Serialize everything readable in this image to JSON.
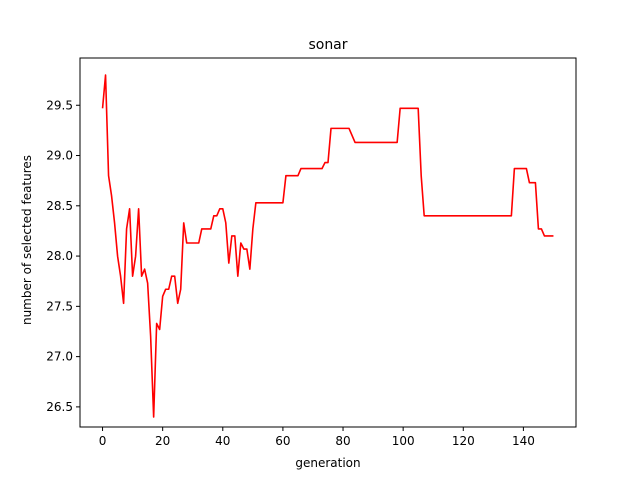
{
  "chart_data": {
    "type": "line",
    "title": "sonar",
    "xlabel": "generation",
    "ylabel": "number of selected features",
    "xlim": [
      -7.5,
      157.5
    ],
    "ylim": [
      26.3,
      29.97
    ],
    "xticks": [
      0,
      20,
      40,
      60,
      80,
      100,
      120,
      140
    ],
    "yticks": [
      26.5,
      27.0,
      27.5,
      28.0,
      28.5,
      29.0,
      29.5
    ],
    "ytick_labels": [
      "26.5",
      "27.0",
      "27.5",
      "28.0",
      "28.5",
      "29.0",
      "29.5"
    ],
    "grid": false,
    "series": [
      {
        "color": "#ff0000",
        "x": [
          0,
          1,
          2,
          3,
          4,
          5,
          6,
          7,
          8,
          9,
          10,
          11,
          12,
          13,
          14,
          15,
          16,
          17,
          18,
          19,
          20,
          21,
          22,
          23,
          24,
          25,
          26,
          27,
          28,
          30,
          32,
          33,
          35,
          36,
          37,
          38,
          39,
          40,
          41,
          42,
          43,
          44,
          45,
          46,
          47,
          48,
          49,
          50,
          51,
          52,
          54,
          56,
          58,
          60,
          61,
          62,
          63,
          64,
          65,
          66,
          68,
          70,
          72,
          73,
          74,
          75,
          76,
          78,
          80,
          82,
          83,
          84,
          86,
          90,
          95,
          98,
          99,
          100,
          102,
          104,
          105,
          106,
          107,
          110,
          115,
          120,
          125,
          130,
          135,
          136,
          137,
          138,
          140,
          141,
          142,
          143,
          144,
          145,
          146,
          147,
          148,
          150
        ],
        "y": [
          29.47,
          29.8,
          28.8,
          28.6,
          28.33,
          28.0,
          27.8,
          27.53,
          28.27,
          28.47,
          27.8,
          28.0,
          28.47,
          27.8,
          27.87,
          27.73,
          27.2,
          26.4,
          27.33,
          27.27,
          27.6,
          27.67,
          27.67,
          27.8,
          27.8,
          27.53,
          27.67,
          28.33,
          28.13,
          28.13,
          28.13,
          28.27,
          28.27,
          28.27,
          28.4,
          28.4,
          28.47,
          28.47,
          28.33,
          27.93,
          28.2,
          28.2,
          27.8,
          28.13,
          28.07,
          28.07,
          27.87,
          28.27,
          28.53,
          28.53,
          28.53,
          28.53,
          28.53,
          28.53,
          28.8,
          28.8,
          28.8,
          28.8,
          28.8,
          28.87,
          28.87,
          28.87,
          28.87,
          28.87,
          28.93,
          28.93,
          29.27,
          29.27,
          29.27,
          29.27,
          29.2,
          29.13,
          29.13,
          29.13,
          29.13,
          29.13,
          29.47,
          29.47,
          29.47,
          29.47,
          29.47,
          28.8,
          28.4,
          28.4,
          28.4,
          28.4,
          28.4,
          28.4,
          28.4,
          28.4,
          28.87,
          28.87,
          28.87,
          28.87,
          28.73,
          28.73,
          28.73,
          28.27,
          28.27,
          28.2,
          28.2,
          28.2
        ]
      }
    ]
  }
}
